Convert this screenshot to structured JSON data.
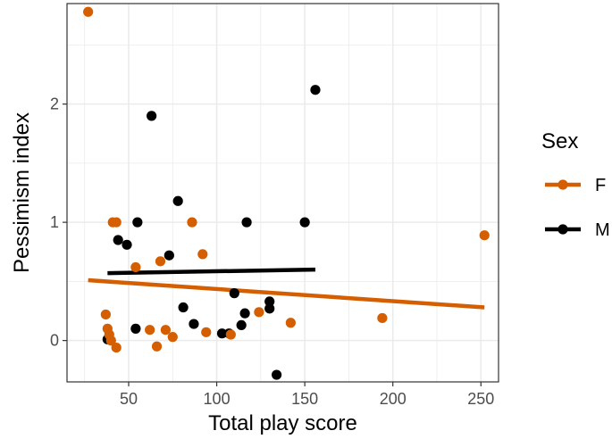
{
  "chart_data": {
    "type": "scatter",
    "xlabel": "Total play score",
    "ylabel": "Pessimism index",
    "xlim": [
      15,
      260
    ],
    "ylim": [
      -0.35,
      2.85
    ],
    "xticks": [
      50,
      100,
      150,
      200,
      250
    ],
    "xtick_labels": [
      "50",
      "100",
      "150",
      "200",
      "250"
    ],
    "yticks": [
      0,
      1,
      2
    ],
    "ytick_labels": [
      "0",
      "1",
      "2"
    ],
    "grid": true,
    "legend": {
      "title": "Sex",
      "position": "right"
    },
    "series": [
      {
        "name": "F",
        "color": "#d55e00",
        "points": [
          [
            27,
            2.78
          ],
          [
            37,
            0.22
          ],
          [
            38,
            0.1
          ],
          [
            39,
            0.05
          ],
          [
            40,
            0.0
          ],
          [
            41,
            1.0
          ],
          [
            43,
            1.0
          ],
          [
            43,
            -0.06
          ],
          [
            54,
            0.62
          ],
          [
            62,
            0.09
          ],
          [
            66,
            -0.05
          ],
          [
            68,
            0.67
          ],
          [
            71,
            0.09
          ],
          [
            75,
            0.03
          ],
          [
            86,
            1.0
          ],
          [
            92,
            0.73
          ],
          [
            94,
            0.07
          ],
          [
            108,
            0.05
          ],
          [
            124,
            0.24
          ],
          [
            142,
            0.15
          ],
          [
            194,
            0.19
          ],
          [
            252,
            0.89
          ]
        ],
        "fit": {
          "x": [
            27,
            252
          ],
          "y": [
            0.51,
            0.28
          ]
        }
      },
      {
        "name": "M",
        "color": "#000000",
        "points": [
          [
            38,
            0.01
          ],
          [
            44,
            0.85
          ],
          [
            49,
            0.81
          ],
          [
            54,
            0.1
          ],
          [
            55,
            1.0
          ],
          [
            63,
            1.9
          ],
          [
            73,
            0.72
          ],
          [
            78,
            1.18
          ],
          [
            81,
            0.28
          ],
          [
            87,
            0.14
          ],
          [
            103,
            0.06
          ],
          [
            107,
            0.06
          ],
          [
            110,
            0.4
          ],
          [
            114,
            0.13
          ],
          [
            116,
            0.23
          ],
          [
            117,
            1.0
          ],
          [
            130,
            0.33
          ],
          [
            130,
            0.27
          ],
          [
            134,
            -0.29
          ],
          [
            150,
            1.0
          ],
          [
            156,
            2.12
          ]
        ],
        "fit": {
          "x": [
            38,
            156
          ],
          "y": [
            0.57,
            0.6
          ]
        }
      }
    ]
  }
}
